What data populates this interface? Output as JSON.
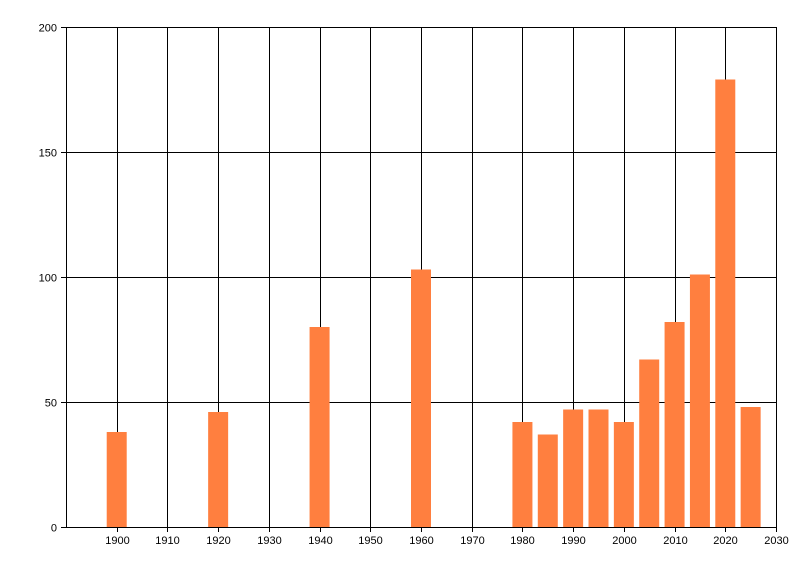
{
  "chart_data": {
    "type": "bar",
    "title": "",
    "xlabel": "",
    "ylabel": "",
    "x": [
      1900,
      1920,
      1940,
      1960,
      1980,
      1985,
      1990,
      1995,
      2000,
      2005,
      2010,
      2015,
      2020,
      2025
    ],
    "values": [
      38,
      46,
      80,
      103,
      42,
      37,
      47,
      47,
      42,
      67,
      82,
      101,
      179,
      48
    ],
    "xlim": [
      1890,
      2030
    ],
    "ylim": [
      0,
      200
    ],
    "x_ticks": [
      "1900",
      "1910",
      "1920",
      "1930",
      "1940",
      "1950",
      "1960",
      "1970",
      "1980",
      "1990",
      "2000",
      "2010",
      "2020",
      "2030"
    ],
    "y_ticks": [
      "0",
      "50",
      "100",
      "150",
      "200"
    ],
    "grid": true,
    "legend": "none",
    "colors": {
      "bar": "#FF7F3F",
      "grid": "#000000",
      "axis": "#000000",
      "background": "#FFFFFF"
    }
  }
}
